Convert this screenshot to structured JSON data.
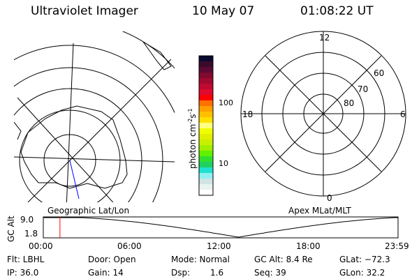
{
  "header": {
    "instrument": "Ultraviolet Imager",
    "date": "10 May 07",
    "time": "01:08:22 UT"
  },
  "left_map": {
    "label": "Geographic Lat/Lon",
    "track_color": "#0000ff"
  },
  "right_map": {
    "label": "Apex MLat/MLT",
    "mlt_labels": {
      "top": "12",
      "left": "18",
      "right": "6",
      "bottom": "0"
    },
    "mlat_labels": [
      "60",
      "70",
      "80"
    ]
  },
  "colorbar": {
    "unit_label": "photon cm",
    "exp1": "-2",
    "unit_s": "s",
    "exp2": "-1",
    "ticks": [
      "100",
      "10"
    ],
    "colors": [
      "#0a0a30",
      "#3a0a2a",
      "#5a0a32",
      "#800a30",
      "#a00a30",
      "#c00a30",
      "#e00a30",
      "#ff0000",
      "#ff7000",
      "#ffa000",
      "#ffc000",
      "#ffe000",
      "#ffff80",
      "#f0ff00",
      "#e0f000",
      "#c8f000",
      "#a0f000",
      "#60f000",
      "#30e030",
      "#20d060",
      "#20e0d0",
      "#90f0f0",
      "#d0e4e4",
      "#e8f4ee",
      "#ffffff"
    ]
  },
  "timeline": {
    "ylabel": "GC Alt",
    "yticks": [
      "9.0",
      "1.8"
    ],
    "xticks": [
      "00:00",
      "06:00",
      "12:00",
      "18:00",
      "23:59"
    ],
    "current_marker_color": "#ff0000",
    "current_time_fraction": 0.047
  },
  "status": {
    "flt": "Flt: LBHL",
    "ip": "IP: 36.0",
    "door": "Door: Open",
    "gain": "Gain: 14",
    "mode": "Mode: Normal",
    "dsp_label": "Dsp:",
    "dsp_value": "1.6",
    "gc_alt": "GC Alt: 8.4 Re",
    "seq": "Seq: 39",
    "glat": "GLat: −72.3",
    "glon": "GLon:  32.2"
  }
}
